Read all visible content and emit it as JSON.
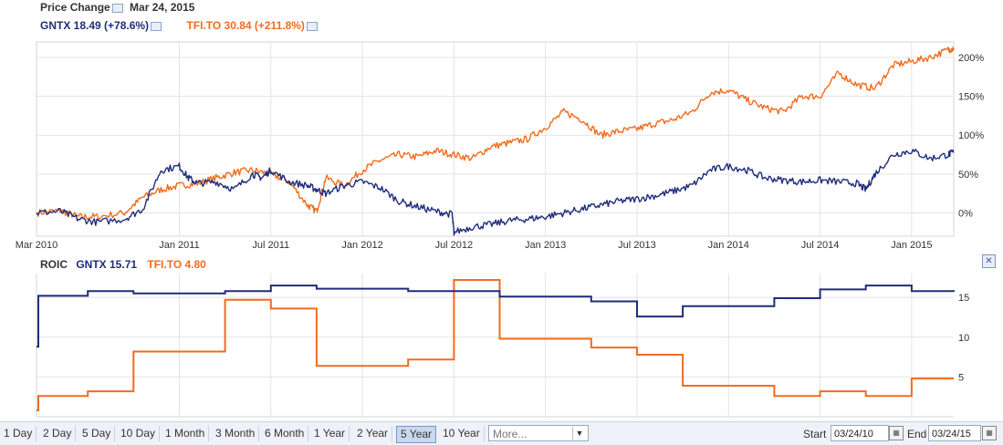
{
  "header": {
    "title": "Price Change",
    "date": "Mar 24, 2015",
    "gntx_label": "GNTX 18.49 (+78.6%)",
    "tfi_label": "TFI.TO 30.84 (+211.8%)"
  },
  "roic_header": {
    "title": "ROIC",
    "gntx_label": "GNTX 15.71",
    "tfi_label": "TFI.TO 4.80"
  },
  "toolbar": {
    "ranges": [
      "1 Day",
      "2 Day",
      "5 Day",
      "10 Day",
      "1 Month",
      "3 Month",
      "6 Month",
      "1 Year",
      "2 Year",
      "5 Year",
      "10 Year"
    ],
    "selected": "5 Year",
    "more_placeholder": "More...",
    "start_label": "Start",
    "start_value": "03/24/10",
    "end_label": "End",
    "end_value": "03/24/15"
  },
  "colors": {
    "gntx": "#1f2d7a",
    "tfi": "#f26b1d",
    "grid": "#e3e3e3"
  },
  "chart_data": [
    {
      "type": "line",
      "title": "Price Change",
      "x_ticks": [
        "Mar 2010",
        "Jan 2011",
        "Jul 2011",
        "Jan 2012",
        "Jul 2012",
        "Jan 2013",
        "Jul 2013",
        "Jan 2014",
        "Jul 2014",
        "Jan 2015"
      ],
      "x_tick_pos": [
        2010.22,
        2011.0,
        2011.5,
        2012.0,
        2012.5,
        2013.0,
        2013.5,
        2014.0,
        2014.5,
        2015.0
      ],
      "x_range": [
        2010.22,
        2015.23
      ],
      "y_ticks": [
        "0%",
        "50%",
        "100%",
        "150%",
        "200%"
      ],
      "y_tick_values": [
        0,
        50,
        100,
        150,
        200
      ],
      "ylim": [
        -30,
        220
      ],
      "grid": true,
      "series": [
        {
          "name": "GNTX",
          "x": [
            2010.22,
            2010.35,
            2010.45,
            2010.55,
            2010.7,
            2010.8,
            2010.9,
            2011.0,
            2011.05,
            2011.1,
            2011.2,
            2011.3,
            2011.4,
            2011.45,
            2011.5,
            2011.6,
            2011.7,
            2011.75,
            2011.8,
            2011.9,
            2012.0,
            2012.1,
            2012.2,
            2012.3,
            2012.4,
            2012.49,
            2012.5,
            2012.6,
            2012.7,
            2012.8,
            2012.9,
            2013.0,
            2013.1,
            2013.2,
            2013.3,
            2013.4,
            2013.5,
            2013.6,
            2013.7,
            2013.8,
            2013.9,
            2014.0,
            2014.1,
            2014.2,
            2014.3,
            2014.4,
            2014.5,
            2014.6,
            2014.7,
            2014.75,
            2014.8,
            2014.9,
            2015.0,
            2015.1,
            2015.2,
            2015.23
          ],
          "values": [
            0,
            2,
            -8,
            -12,
            -8,
            5,
            55,
            60,
            45,
            38,
            40,
            30,
            50,
            45,
            55,
            40,
            35,
            30,
            25,
            35,
            40,
            32,
            15,
            8,
            2,
            -2,
            -25,
            -18,
            -15,
            -10,
            -8,
            -5,
            0,
            5,
            10,
            15,
            18,
            22,
            28,
            35,
            55,
            60,
            55,
            45,
            42,
            40,
            42,
            40,
            38,
            30,
            50,
            75,
            80,
            70,
            75,
            78.6
          ]
        },
        {
          "name": "TFI.TO",
          "x": [
            2010.22,
            2010.35,
            2010.45,
            2010.55,
            2010.7,
            2010.8,
            2010.9,
            2011.0,
            2011.1,
            2011.2,
            2011.3,
            2011.4,
            2011.5,
            2011.6,
            2011.7,
            2011.75,
            2011.8,
            2011.9,
            2012.0,
            2012.1,
            2012.2,
            2012.3,
            2012.4,
            2012.5,
            2012.6,
            2012.7,
            2012.8,
            2012.9,
            2013.0,
            2013.1,
            2013.2,
            2013.3,
            2013.4,
            2013.5,
            2013.6,
            2013.7,
            2013.8,
            2013.9,
            2014.0,
            2014.1,
            2014.2,
            2014.3,
            2014.4,
            2014.5,
            2014.6,
            2014.7,
            2014.8,
            2014.9,
            2015.0,
            2015.1,
            2015.2,
            2015.23
          ],
          "values": [
            0,
            3,
            -5,
            -5,
            0,
            20,
            30,
            35,
            38,
            45,
            52,
            55,
            50,
            40,
            10,
            2,
            45,
            35,
            55,
            68,
            75,
            72,
            80,
            75,
            70,
            85,
            90,
            95,
            110,
            130,
            120,
            100,
            105,
            108,
            115,
            120,
            130,
            155,
            158,
            145,
            135,
            130,
            150,
            150,
            180,
            165,
            160,
            190,
            195,
            200,
            210,
            211.8
          ]
        }
      ]
    },
    {
      "type": "line",
      "title": "ROIC",
      "x_range": [
        2010.22,
        2015.23
      ],
      "y_ticks": [
        "5",
        "10",
        "15"
      ],
      "y_tick_values": [
        5,
        10,
        15
      ],
      "ylim": [
        0,
        18
      ],
      "grid": true,
      "step": true,
      "series": [
        {
          "name": "GNTX",
          "x": [
            2010.22,
            2010.23,
            2010.5,
            2010.75,
            2011.0,
            2011.25,
            2011.5,
            2011.75,
            2012.0,
            2012.25,
            2012.5,
            2012.75,
            2013.0,
            2013.25,
            2013.5,
            2013.75,
            2014.0,
            2014.25,
            2014.5,
            2014.75,
            2015.0,
            2015.23
          ],
          "values": [
            8.8,
            15.2,
            15.8,
            15.5,
            15.5,
            15.8,
            16.5,
            16.1,
            16.1,
            15.8,
            15.8,
            15.1,
            15.1,
            14.5,
            12.6,
            13.9,
            13.9,
            14.9,
            16.0,
            16.5,
            15.8,
            15.71
          ]
        },
        {
          "name": "TFI.TO",
          "x": [
            2010.22,
            2010.23,
            2010.5,
            2010.75,
            2011.0,
            2011.25,
            2011.5,
            2011.75,
            2012.0,
            2012.25,
            2012.5,
            2012.75,
            2013.0,
            2013.25,
            2013.5,
            2013.75,
            2014.0,
            2014.25,
            2014.5,
            2014.75,
            2015.0,
            2015.23
          ],
          "values": [
            0.8,
            2.6,
            3.2,
            8.2,
            8.2,
            14.7,
            13.6,
            6.4,
            6.4,
            7.2,
            17.2,
            9.8,
            9.8,
            8.7,
            7.8,
            3.9,
            3.9,
            2.6,
            3.2,
            2.6,
            4.8,
            4.8
          ]
        }
      ]
    }
  ]
}
